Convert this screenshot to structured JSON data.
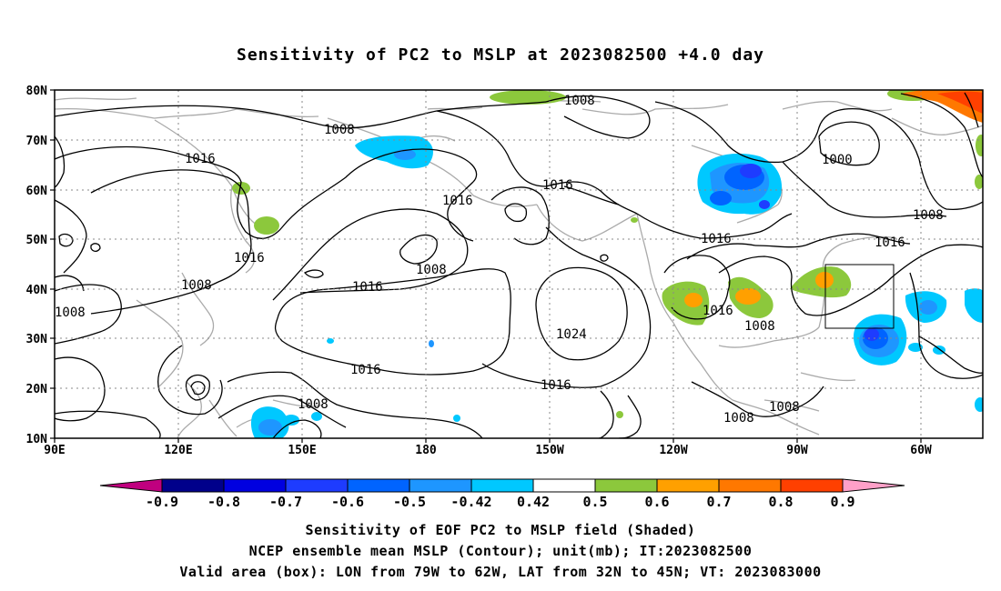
{
  "title": "Sensitivity of PC2 to MSLP at 2023082500 +4.0 day",
  "lat_labels": [
    "80N",
    "70N",
    "60N",
    "50N",
    "40N",
    "30N",
    "20N",
    "10N"
  ],
  "lon_labels": [
    "90E",
    "120E",
    "150E",
    "180",
    "150W",
    "120W",
    "90W",
    "60W"
  ],
  "contour_labels": [
    "1008",
    "1008",
    "1016",
    "1016",
    "1016",
    "1016",
    "1008",
    "1016",
    "1008",
    "1008",
    "1016",
    "1016",
    "1024",
    "1016",
    "1016",
    "1008",
    "1008",
    "1008",
    "1008",
    "1000",
    "1008",
    "1016"
  ],
  "colorbar": {
    "colors": [
      "#c0007f",
      "#00008b",
      "#0000e0",
      "#1e3cff",
      "#0064ff",
      "#1e96ff",
      "#00c8ff",
      "#ffffff",
      "#8cc83c",
      "#ffa000",
      "#ff7800",
      "#ff4000",
      "#ff0000",
      "#ffa0c8"
    ],
    "labels": [
      "-0.9",
      "-0.8",
      "-0.7",
      "-0.6",
      "-0.5",
      "-0.42",
      "0.42",
      "0.5",
      "0.6",
      "0.7",
      "0.8",
      "0.9"
    ]
  },
  "valid_box": {
    "lon_from": "79W",
    "lon_to": "62W",
    "lat_from": "32N",
    "lat_to": "45N"
  },
  "caption": {
    "line1": "Sensitivity of EOF PC2 to MSLP field (Shaded)",
    "line2": "NCEP ensemble mean MSLP (Contour); unit(mb); IT:2023082500",
    "line3": "Valid area (box): LON from 79W to 62W, LAT from 32N to 45N; VT: 2023083000"
  }
}
